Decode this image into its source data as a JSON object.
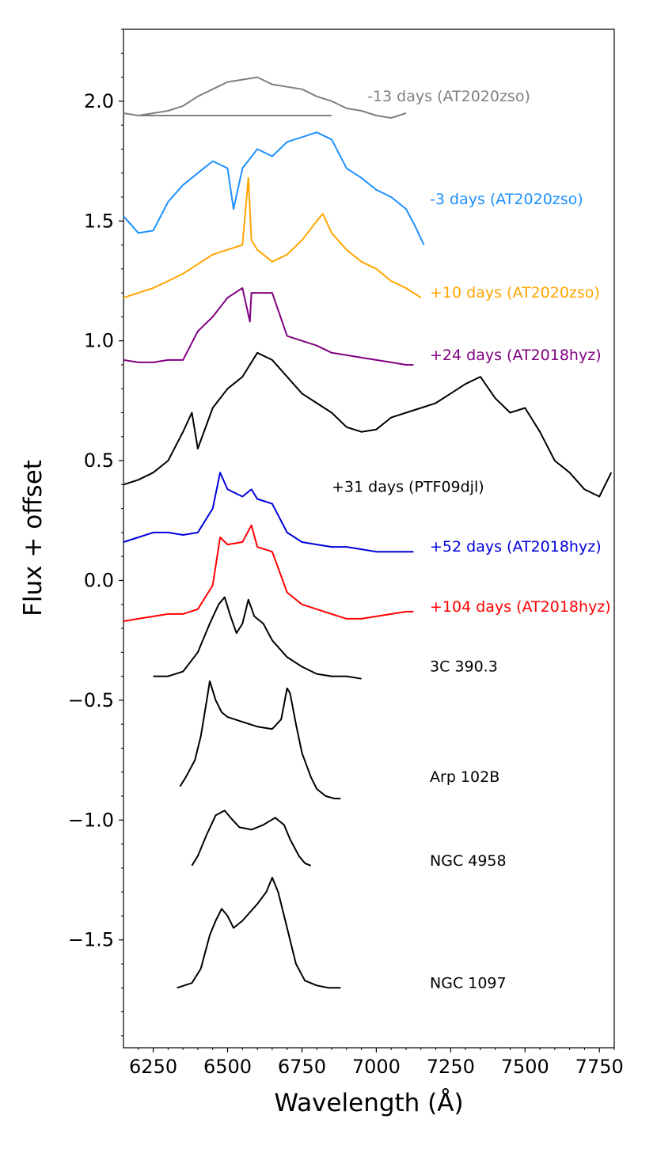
{
  "chart_data": {
    "type": "line",
    "title": "",
    "xlabel": "Wavelength (Å)",
    "ylabel": "Flux + offset",
    "xlim": [
      6150,
      7800
    ],
    "ylim": [
      -1.95,
      2.3
    ],
    "xticks": [
      6250,
      6500,
      6750,
      7000,
      7250,
      7500,
      7750
    ],
    "yticks": [
      -1.5,
      -1.0,
      -0.5,
      0.0,
      0.5,
      1.0,
      1.5,
      2.0
    ],
    "xtick_labels": [
      "6250",
      "6500",
      "6750",
      "7000",
      "7250",
      "7500",
      "7750"
    ],
    "ytick_labels": [
      "−1.5",
      "−1.0",
      "−0.5",
      "0.0",
      "0.5",
      "1.0",
      "1.5",
      "2.0"
    ],
    "series": [
      {
        "name": "-13 days (AT2020zso)",
        "color": "#808080",
        "label_x": 6970,
        "label_y": 2.0,
        "x": [
          6150,
          6200,
          6250,
          6300,
          6350,
          6400,
          6450,
          6500,
          6550,
          6600,
          6650,
          6700,
          6750,
          6800,
          6850,
          6900,
          6950,
          7000,
          7050,
          7100
        ],
        "y": [
          1.95,
          1.94,
          1.95,
          1.96,
          1.98,
          2.02,
          2.05,
          2.08,
          2.09,
          2.1,
          2.07,
          2.06,
          2.05,
          2.02,
          2.0,
          1.97,
          1.96,
          1.94,
          1.93,
          1.95
        ],
        "extra": [
          {
            "x": [
              6200,
              6850
            ],
            "y": [
              1.94,
              1.94
            ]
          }
        ]
      },
      {
        "name": "-3 days (AT2020zso)",
        "color": "#1e90ff",
        "label_x": 7180,
        "label_y": 1.57,
        "x": [
          6150,
          6200,
          6250,
          6300,
          6350,
          6400,
          6450,
          6500,
          6520,
          6550,
          6600,
          6650,
          6700,
          6750,
          6800,
          6850,
          6900,
          6950,
          7000,
          7050,
          7100,
          7130,
          7160
        ],
        "y": [
          1.52,
          1.45,
          1.46,
          1.58,
          1.65,
          1.7,
          1.75,
          1.72,
          1.55,
          1.72,
          1.8,
          1.77,
          1.83,
          1.85,
          1.87,
          1.84,
          1.72,
          1.68,
          1.63,
          1.6,
          1.55,
          1.48,
          1.4
        ]
      },
      {
        "name": "+10 days (AT2020zso)",
        "color": "#ffa500",
        "label_x": 7180,
        "label_y": 1.18,
        "x": [
          6150,
          6200,
          6250,
          6300,
          6350,
          6400,
          6450,
          6500,
          6550,
          6570,
          6580,
          6600,
          6650,
          6700,
          6750,
          6800,
          6820,
          6850,
          6900,
          6950,
          7000,
          7050,
          7100,
          7150
        ],
        "y": [
          1.18,
          1.2,
          1.22,
          1.25,
          1.28,
          1.32,
          1.36,
          1.38,
          1.4,
          1.68,
          1.42,
          1.38,
          1.33,
          1.36,
          1.42,
          1.5,
          1.53,
          1.45,
          1.38,
          1.33,
          1.3,
          1.25,
          1.22,
          1.18
        ]
      },
      {
        "name": "+24 days (AT2018hyz)",
        "color": "#800080",
        "label_x": 7180,
        "label_y": 0.92,
        "x": [
          6150,
          6200,
          6250,
          6300,
          6350,
          6400,
          6450,
          6500,
          6550,
          6575,
          6580,
          6600,
          6650,
          6700,
          6750,
          6800,
          6850,
          6900,
          6950,
          7000,
          7050,
          7100,
          7125
        ],
        "y": [
          0.92,
          0.91,
          0.91,
          0.92,
          0.92,
          1.04,
          1.1,
          1.18,
          1.22,
          1.08,
          1.2,
          1.2,
          1.2,
          1.02,
          1.0,
          0.98,
          0.95,
          0.94,
          0.93,
          0.92,
          0.91,
          0.9,
          0.9
        ]
      },
      {
        "name": "+31 days (PTF09djl)",
        "color": "#000000",
        "label_x": 6850,
        "label_y": 0.37,
        "x": [
          6150,
          6200,
          6250,
          6300,
          6350,
          6380,
          6400,
          6450,
          6500,
          6550,
          6600,
          6650,
          6700,
          6750,
          6800,
          6850,
          6900,
          6950,
          7000,
          7050,
          7100,
          7150,
          7200,
          7250,
          7300,
          7350,
          7400,
          7450,
          7500,
          7550,
          7600,
          7650,
          7700,
          7750,
          7790
        ],
        "y": [
          0.4,
          0.42,
          0.45,
          0.5,
          0.62,
          0.7,
          0.55,
          0.72,
          0.8,
          0.85,
          0.95,
          0.92,
          0.85,
          0.78,
          0.74,
          0.7,
          0.64,
          0.62,
          0.63,
          0.68,
          0.7,
          0.72,
          0.74,
          0.78,
          0.82,
          0.85,
          0.76,
          0.7,
          0.72,
          0.62,
          0.5,
          0.45,
          0.38,
          0.35,
          0.45
        ]
      },
      {
        "name": "+52 days (AT2018hyz)",
        "color": "#0000dd",
        "label_x": 7180,
        "label_y": 0.12,
        "x": [
          6150,
          6200,
          6250,
          6300,
          6350,
          6400,
          6450,
          6475,
          6500,
          6550,
          6580,
          6600,
          6650,
          6700,
          6750,
          6800,
          6850,
          6900,
          6950,
          7000,
          7050,
          7100,
          7125
        ],
        "y": [
          0.16,
          0.18,
          0.2,
          0.2,
          0.19,
          0.2,
          0.3,
          0.45,
          0.38,
          0.35,
          0.38,
          0.34,
          0.32,
          0.2,
          0.16,
          0.15,
          0.14,
          0.14,
          0.13,
          0.12,
          0.12,
          0.12,
          0.12
        ]
      },
      {
        "name": "+104 days (AT2018hyz)",
        "color": "#ff0000",
        "label_x": 7180,
        "label_y": -0.13,
        "x": [
          6150,
          6200,
          6250,
          6300,
          6350,
          6400,
          6450,
          6475,
          6500,
          6550,
          6580,
          6600,
          6650,
          6700,
          6750,
          6800,
          6850,
          6900,
          6950,
          7000,
          7050,
          7100,
          7125
        ],
        "y": [
          -0.17,
          -0.16,
          -0.15,
          -0.14,
          -0.14,
          -0.12,
          -0.02,
          0.18,
          0.15,
          0.16,
          0.23,
          0.14,
          0.12,
          -0.05,
          -0.1,
          -0.12,
          -0.14,
          -0.16,
          -0.16,
          -0.15,
          -0.14,
          -0.13,
          -0.13
        ]
      },
      {
        "name": "3C 390.3",
        "color": "#000000",
        "label_x": 7180,
        "label_y": -0.38,
        "x": [
          6250,
          6300,
          6350,
          6400,
          6440,
          6470,
          6490,
          6510,
          6530,
          6550,
          6570,
          6590,
          6620,
          6650,
          6700,
          6750,
          6800,
          6850,
          6900,
          6950
        ],
        "y": [
          -0.4,
          -0.4,
          -0.38,
          -0.3,
          -0.18,
          -0.1,
          -0.07,
          -0.15,
          -0.22,
          -0.18,
          -0.08,
          -0.15,
          -0.18,
          -0.25,
          -0.32,
          -0.36,
          -0.39,
          -0.4,
          -0.4,
          -0.41
        ]
      },
      {
        "name": "Arp 102B",
        "color": "#000000",
        "label_x": 7180,
        "label_y": -0.84,
        "x": [
          6340,
          6360,
          6390,
          6410,
          6430,
          6440,
          6460,
          6480,
          6500,
          6550,
          6600,
          6650,
          6680,
          6700,
          6710,
          6730,
          6750,
          6780,
          6800,
          6830,
          6860,
          6880
        ],
        "y": [
          -0.86,
          -0.82,
          -0.75,
          -0.65,
          -0.5,
          -0.42,
          -0.5,
          -0.55,
          -0.57,
          -0.59,
          -0.61,
          -0.62,
          -0.58,
          -0.45,
          -0.47,
          -0.6,
          -0.72,
          -0.82,
          -0.87,
          -0.9,
          -0.91,
          -0.91
        ]
      },
      {
        "name": "NGC 4958",
        "color": "#000000",
        "label_x": 7180,
        "label_y": -1.19,
        "x": [
          6380,
          6400,
          6430,
          6460,
          6490,
          6510,
          6540,
          6580,
          6620,
          6660,
          6690,
          6710,
          6740,
          6760,
          6780
        ],
        "y": [
          -1.19,
          -1.15,
          -1.06,
          -0.98,
          -0.96,
          -0.99,
          -1.03,
          -1.04,
          -1.02,
          -0.99,
          -1.02,
          -1.08,
          -1.15,
          -1.18,
          -1.19
        ]
      },
      {
        "name": "NGC 1097",
        "color": "#000000",
        "label_x": 7180,
        "label_y": -1.7,
        "x": [
          6330,
          6380,
          6410,
          6440,
          6460,
          6480,
          6500,
          6520,
          6550,
          6600,
          6630,
          6650,
          6670,
          6700,
          6730,
          6760,
          6800,
          6840,
          6880
        ],
        "y": [
          -1.7,
          -1.68,
          -1.62,
          -1.48,
          -1.42,
          -1.37,
          -1.4,
          -1.45,
          -1.42,
          -1.35,
          -1.3,
          -1.24,
          -1.3,
          -1.45,
          -1.6,
          -1.67,
          -1.69,
          -1.7,
          -1.7
        ]
      }
    ]
  }
}
